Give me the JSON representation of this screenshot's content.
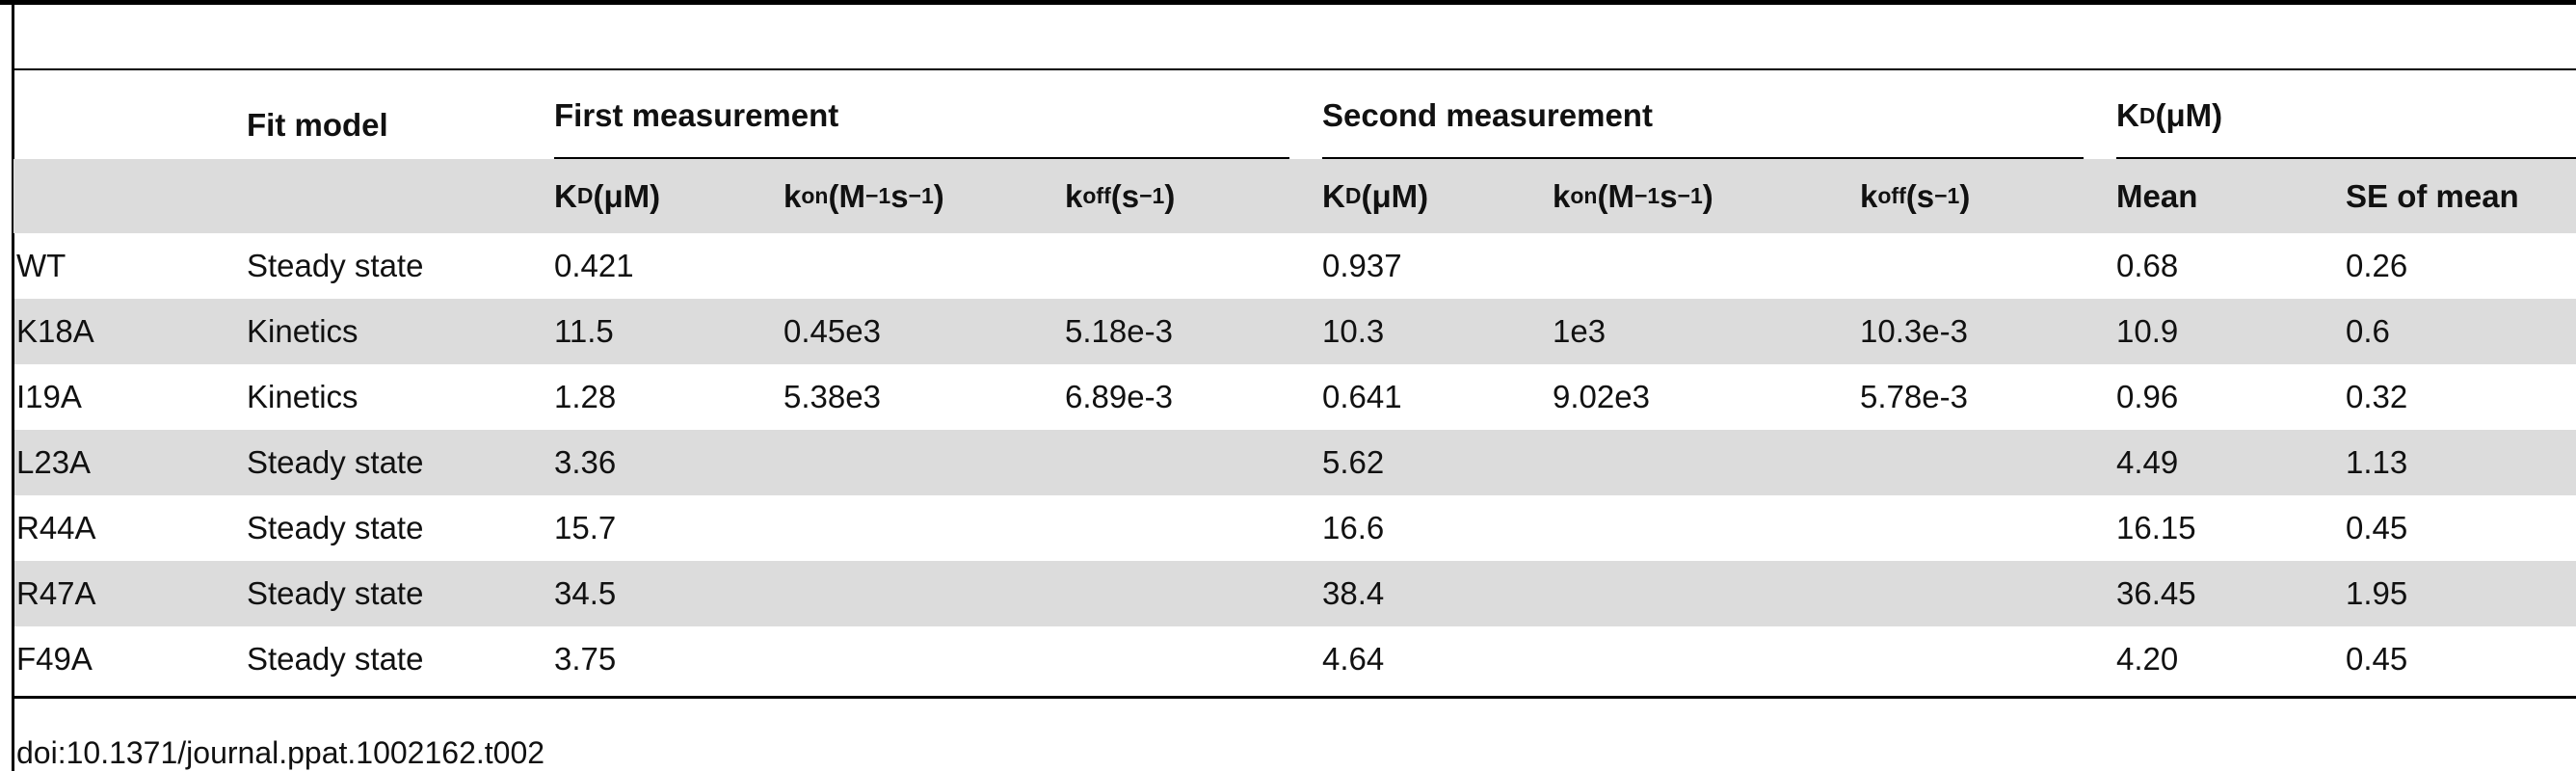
{
  "table": {
    "fit_model": "Fit model",
    "groups": [
      [
        {
          "text": "First measurement"
        }
      ],
      [
        {
          "text": "Second measurement"
        }
      ],
      [
        {
          "text": "K"
        },
        {
          "sub": "D"
        },
        {
          "text": " (μM)"
        }
      ]
    ],
    "subheaders": [
      [
        {
          "text": "K"
        },
        {
          "sub": "D"
        },
        {
          "text": " (μM)"
        }
      ],
      [
        {
          "text": "k"
        },
        {
          "sub": "on"
        },
        {
          "text": " (M"
        },
        {
          "sup": "−1"
        },
        {
          "text": "s"
        },
        {
          "sup": "−1"
        },
        {
          "text": ")"
        }
      ],
      [
        {
          "text": "k"
        },
        {
          "sub": "off"
        },
        {
          "text": " (s"
        },
        {
          "sup": "−1"
        },
        {
          "text": ")"
        }
      ],
      [
        {
          "text": "K"
        },
        {
          "sub": "D"
        },
        {
          "text": " (μM)"
        }
      ],
      [
        {
          "text": "k"
        },
        {
          "sub": "on"
        },
        {
          "text": " (M"
        },
        {
          "sup": "−1"
        },
        {
          "text": "s"
        },
        {
          "sup": "−1"
        },
        {
          "text": ")"
        }
      ],
      [
        {
          "text": "k"
        },
        {
          "sub": "off"
        },
        {
          "text": " (s"
        },
        {
          "sup": "−1"
        },
        {
          "text": ")"
        }
      ],
      [
        {
          "text": "Mean"
        }
      ],
      [
        {
          "text": "SE of mean"
        }
      ]
    ],
    "rows": [
      [
        "WT",
        "Steady state",
        "0.421",
        null,
        null,
        "0.937",
        null,
        null,
        "0.68",
        "0.26"
      ],
      [
        "K18A",
        "Kinetics",
        "11.5",
        "0.45e3",
        "5.18e-3",
        "10.3",
        "1e3",
        "10.3e-3",
        "10.9",
        "0.6"
      ],
      [
        "I19A",
        "Kinetics",
        "1.28",
        "5.38e3",
        "6.89e-3",
        "0.641",
        "9.02e3",
        "5.78e-3",
        "0.96",
        "0.32"
      ],
      [
        "L23A",
        "Steady state",
        "3.36",
        null,
        null,
        "5.62",
        null,
        null,
        "4.49",
        "1.13"
      ],
      [
        "R44A",
        "Steady state",
        "15.7",
        null,
        null,
        "16.6",
        null,
        null,
        "16.15",
        "0.45"
      ],
      [
        "R47A",
        "Steady state",
        "34.5",
        null,
        null,
        "38.4",
        null,
        null,
        "36.45",
        "1.95"
      ],
      [
        "F49A",
        "Steady state",
        "3.75",
        null,
        null,
        "4.64",
        null,
        null,
        "4.20",
        "0.45"
      ]
    ],
    "doi": "doi:10.1371/journal.ppat.1002162.t002"
  }
}
